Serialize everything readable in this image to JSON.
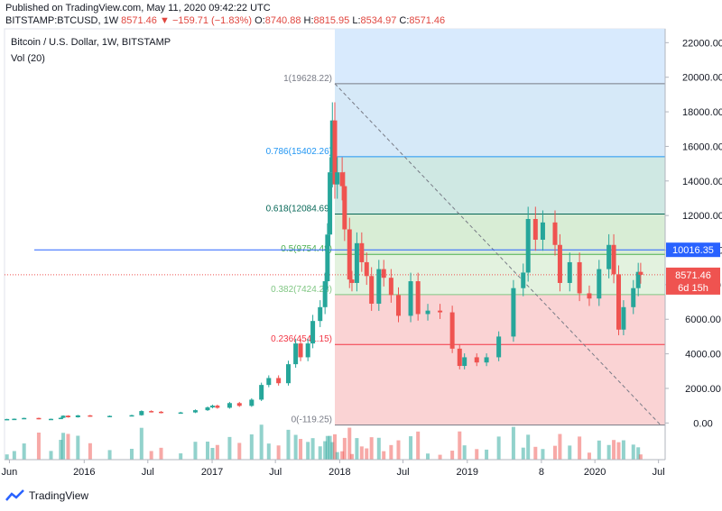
{
  "header": {
    "published": "Published on TradingView.com, May 11, 2020 09:42:22 UTC",
    "symbol": "BITSTAMP:BTCUSD, 1W",
    "last": "8571.46",
    "change": "−159.71 (−1.83%)",
    "o_label": "O:",
    "o": "8740.88",
    "h_label": "H:",
    "h": "8815.95",
    "l_label": "L:",
    "l": "8534.97",
    "c_label": "C:",
    "c": "8571.46"
  },
  "chart_data": {
    "type": "candlestick",
    "title": "Bitcoin / U.S. Dollar, 1W, BITSTAMP",
    "subtitle": "Vol (20)",
    "ylim": [
      -400,
      22800
    ],
    "y_ticks": [
      "22000.00",
      "20000.00",
      "18000.00",
      "16000.00",
      "14000.00",
      "12000.00",
      "10000.00",
      "8000.00",
      "6000.00",
      "4000.00",
      "2000.00",
      "0.00"
    ],
    "y_tick_values": [
      22000,
      20000,
      18000,
      16000,
      14000,
      12000,
      10000,
      8000,
      6000,
      4000,
      2000,
      0
    ],
    "x_ticks": [
      "Jun",
      "2016",
      "Jul",
      "2017",
      "Jul",
      "2018",
      "Jul",
      "2019",
      "8",
      "2020",
      "Jul"
    ],
    "x_tick_dates": [
      "2015-06-01",
      "2016-01-01",
      "2016-07-01",
      "2017-01-01",
      "2017-07-01",
      "2018-01-01",
      "2018-07-01",
      "2019-01-01",
      "2019-08-01",
      "2020-01-01",
      "2020-07-01"
    ],
    "x_range": [
      "2015-05-18",
      "2020-07-20"
    ],
    "fib_levels": [
      {
        "label": "1(19628.22)",
        "value": 19628.22,
        "color": "#787b86",
        "fill": "#d9d9d9"
      },
      {
        "label": "0.786(15402.26)",
        "value": 15402.26,
        "color": "#2196f3",
        "fill": "#d6e9f8"
      },
      {
        "label": "0.618(12084.69)",
        "value": 12084.69,
        "color": "#056656",
        "fill": "#cfe8e3"
      },
      {
        "label": "0.5(9754.48)",
        "value": 9754.48,
        "color": "#4caf50",
        "fill": "#d8edd5"
      },
      {
        "label": "0.382(7424.28)",
        "value": 7424.28,
        "color": "#81c784",
        "fill": "#e3f2df"
      },
      {
        "label": "0.236(4541.15)",
        "value": 4541.15,
        "color": "#f23645",
        "fill": "#fad3d4"
      },
      {
        "label": "0(-119.25)",
        "value": -119.25,
        "color": "#787b86",
        "fill": null
      }
    ],
    "fib_top_fill": "#d8eafd",
    "fib_start": "2017-12-18",
    "hline": {
      "value": 10016.35,
      "label": "10016.35",
      "color": "#2962ff"
    },
    "price_line": {
      "value": 8571.46,
      "label": "8571.46",
      "countdown": "6d 15h",
      "color": "#ef5350"
    },
    "up_color": "#26a69a",
    "down_color": "#ef5350",
    "series": [
      {
        "date": "2015-05-25",
        "close": 230
      },
      {
        "date": "2015-06-15",
        "close": 245
      },
      {
        "date": "2015-07-13",
        "close": 290
      },
      {
        "date": "2015-08-24",
        "close": 225
      },
      {
        "date": "2015-09-28",
        "close": 240
      },
      {
        "date": "2015-10-26",
        "close": 300
      },
      {
        "date": "2015-11-02",
        "close": 420
      },
      {
        "date": "2015-11-16",
        "close": 330
      },
      {
        "date": "2015-12-14",
        "close": 440
      },
      {
        "date": "2016-01-18",
        "close": 380
      },
      {
        "date": "2016-03-14",
        "close": 410
      },
      {
        "date": "2016-05-16",
        "close": 450
      },
      {
        "date": "2016-06-13",
        "close": 690
      },
      {
        "date": "2016-07-11",
        "close": 650
      },
      {
        "date": "2016-08-08",
        "close": 590
      },
      {
        "date": "2016-10-03",
        "close": 610
      },
      {
        "date": "2016-11-14",
        "close": 740
      },
      {
        "date": "2016-12-19",
        "close": 900
      },
      {
        "date": "2017-01-02",
        "close": 1000
      },
      {
        "date": "2017-01-16",
        "close": 880
      },
      {
        "date": "2017-02-20",
        "close": 1150
      },
      {
        "date": "2017-03-20",
        "close": 990
      },
      {
        "date": "2017-04-24",
        "close": 1350
      },
      {
        "date": "2017-05-22",
        "close": 2200
      },
      {
        "date": "2017-06-12",
        "close": 2600
      },
      {
        "date": "2017-07-10",
        "close": 2300
      },
      {
        "date": "2017-08-07",
        "close": 3400
      },
      {
        "date": "2017-08-28",
        "close": 4600
      },
      {
        "date": "2017-09-11",
        "close": 3800
      },
      {
        "date": "2017-10-02",
        "close": 4600
      },
      {
        "date": "2017-10-16",
        "close": 5900
      },
      {
        "date": "2017-11-06",
        "close": 6700
      },
      {
        "date": "2017-11-20",
        "close": 8200
      },
      {
        "date": "2017-11-27",
        "close": 10900
      },
      {
        "date": "2017-12-04",
        "close": 14500
      },
      {
        "date": "2017-12-11",
        "close": 17500
      },
      {
        "date": "2017-12-18",
        "close": 13800
      },
      {
        "date": "2017-12-25",
        "close": 14500
      },
      {
        "date": "2018-01-08",
        "close": 13700
      },
      {
        "date": "2018-01-15",
        "close": 11200
      },
      {
        "date": "2018-01-29",
        "close": 8300
      },
      {
        "date": "2018-02-05",
        "close": 8100
      },
      {
        "date": "2018-02-19",
        "close": 10400
      },
      {
        "date": "2018-03-05",
        "close": 9300
      },
      {
        "date": "2018-03-19",
        "close": 8500
      },
      {
        "date": "2018-04-02",
        "close": 6900
      },
      {
        "date": "2018-04-23",
        "close": 8900
      },
      {
        "date": "2018-05-07",
        "close": 8400
      },
      {
        "date": "2018-05-28",
        "close": 7400
      },
      {
        "date": "2018-06-18",
        "close": 6200
      },
      {
        "date": "2018-07-23",
        "close": 8200
      },
      {
        "date": "2018-08-13",
        "close": 6300
      },
      {
        "date": "2018-09-10",
        "close": 6500
      },
      {
        "date": "2018-10-15",
        "close": 6400
      },
      {
        "date": "2018-11-19",
        "close": 4300
      },
      {
        "date": "2018-12-10",
        "close": 3300
      },
      {
        "date": "2018-12-24",
        "close": 3800
      },
      {
        "date": "2019-01-28",
        "close": 3500
      },
      {
        "date": "2019-02-25",
        "close": 3800
      },
      {
        "date": "2019-04-01",
        "close": 5000
      },
      {
        "date": "2019-05-13",
        "close": 7800
      },
      {
        "date": "2019-06-10",
        "close": 8700
      },
      {
        "date": "2019-06-24",
        "close": 11800
      },
      {
        "date": "2019-07-15",
        "close": 10600
      },
      {
        "date": "2019-08-05",
        "close": 11600
      },
      {
        "date": "2019-09-09",
        "close": 10300
      },
      {
        "date": "2019-09-23",
        "close": 8100
      },
      {
        "date": "2019-10-21",
        "close": 9300
      },
      {
        "date": "2019-11-18",
        "close": 7500
      },
      {
        "date": "2019-12-16",
        "close": 7200
      },
      {
        "date": "2020-01-13",
        "close": 8900
      },
      {
        "date": "2020-02-10",
        "close": 10300
      },
      {
        "date": "2020-02-24",
        "close": 8600
      },
      {
        "date": "2020-03-09",
        "close": 5400
      },
      {
        "date": "2020-03-23",
        "close": 6700
      },
      {
        "date": "2020-04-20",
        "close": 7800
      },
      {
        "date": "2020-05-04",
        "close": 8740
      },
      {
        "date": "2020-05-11",
        "close": 8571
      }
    ]
  },
  "footer": {
    "brand": "TradingView"
  }
}
